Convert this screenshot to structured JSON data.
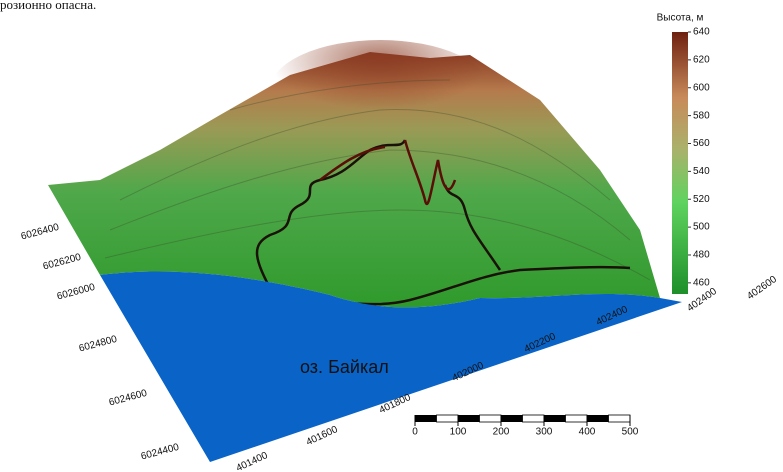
{
  "caption": "розионно опасна.",
  "legend": {
    "title": "Высота, м",
    "limits": [
      452,
      640
    ],
    "ticks": [
      460,
      480,
      500,
      520,
      540,
      560,
      580,
      600,
      620,
      640
    ]
  },
  "y_axis_labels": [
    "6024400",
    "6024600",
    "6024800",
    "6026000",
    "6026200",
    "6026400"
  ],
  "x_axis_labels": [
    "401400",
    "401600",
    "401800",
    "402000",
    "402200",
    "402400"
  ],
  "right_axis_labels": [
    "402400",
    "402600"
  ],
  "lake_label": "оз. Байкал",
  "scale_bar": {
    "ticks": [
      0,
      100,
      200,
      300,
      400,
      500
    ]
  }
}
